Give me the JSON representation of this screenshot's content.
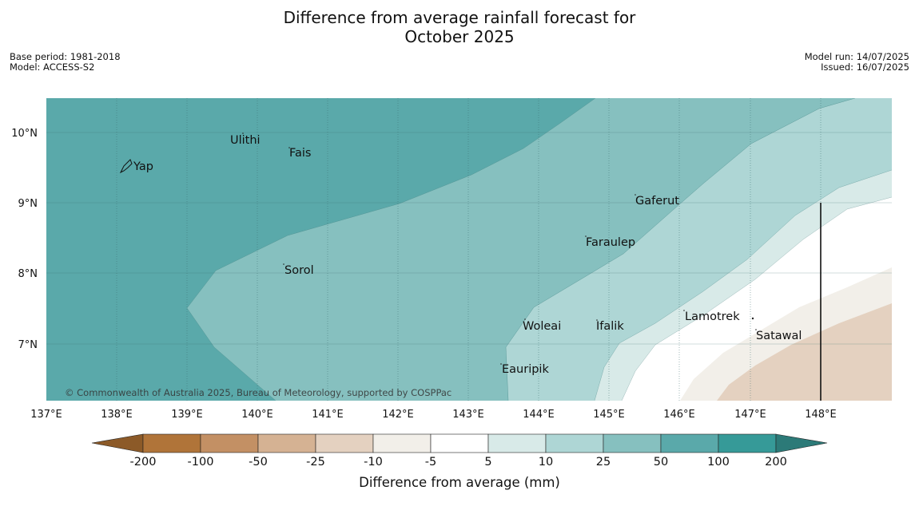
{
  "title": {
    "line1": "Difference from average rainfall forecast for",
    "line2": "October 2025"
  },
  "meta_left": {
    "base_period": "Base period: 1981-2018",
    "model": "Model: ACCESS-S2"
  },
  "meta_right": {
    "model_run": "Model run: 14/07/2025",
    "issued": "Issued: 16/07/2025"
  },
  "map": {
    "longitude_ticks": [
      "137°E",
      "138°E",
      "139°E",
      "140°E",
      "141°E",
      "142°E",
      "143°E",
      "144°E",
      "145°E",
      "146°E",
      "147°E",
      "148°E"
    ],
    "latitude_ticks": [
      "10°N",
      "9°N",
      "8°N",
      "7°N"
    ],
    "lon_range": [
      137,
      149
    ],
    "lat_range": [
      6.2,
      10.5
    ],
    "places": [
      {
        "name": "Yap",
        "lon": 138.2,
        "lat": 9.5
      },
      {
        "name": "Ulithi",
        "lon": 139.6,
        "lat": 9.9
      },
      {
        "name": "Fais",
        "lon": 140.4,
        "lat": 9.75
      },
      {
        "name": "Gaferut",
        "lon": 145.35,
        "lat": 9.05
      },
      {
        "name": "Faraulep",
        "lon": 144.6,
        "lat": 8.45
      },
      {
        "name": "Sorol",
        "lon": 140.3,
        "lat": 8.05
      },
      {
        "name": "Woleai",
        "lon": 143.8,
        "lat": 7.3
      },
      {
        "name": "Ifalik",
        "lon": 144.75,
        "lat": 7.3
      },
      {
        "name": "Lamotrek",
        "lon": 146.0,
        "lat": 7.45
      },
      {
        "name": "Satawal",
        "lon": 147.05,
        "lat": 7.15
      },
      {
        "name": "Eauripik",
        "lon": 143.45,
        "lat": 6.7
      }
    ],
    "copyright": "© Commonwealth of Australia 2025, Bureau of Meteorology, supported by COSPPac"
  },
  "colorbar": {
    "label": "Difference from average (mm)",
    "ticks": [
      "-200",
      "-100",
      "-50",
      "-25",
      "-10",
      "-5",
      "5",
      "10",
      "25",
      "50",
      "100",
      "200"
    ],
    "colors": {
      "extend_low": "#8c5a28",
      "lt_neg200": "#b07439",
      "neg200_neg100": "#c39064",
      "neg100_neg50": "#d5b293",
      "neg50_neg25": "#e4d1c0",
      "neg25_neg10": "#f2efe9",
      "neg5_5": "#ffffff",
      "p5_10": "#d8eae8",
      "p10_25": "#aed6d5",
      "p25_50": "#86c0bf",
      "p50_100": "#5aa9aa",
      "p100_200": "#369a98",
      "extend_high": "#2c7a78"
    }
  }
}
